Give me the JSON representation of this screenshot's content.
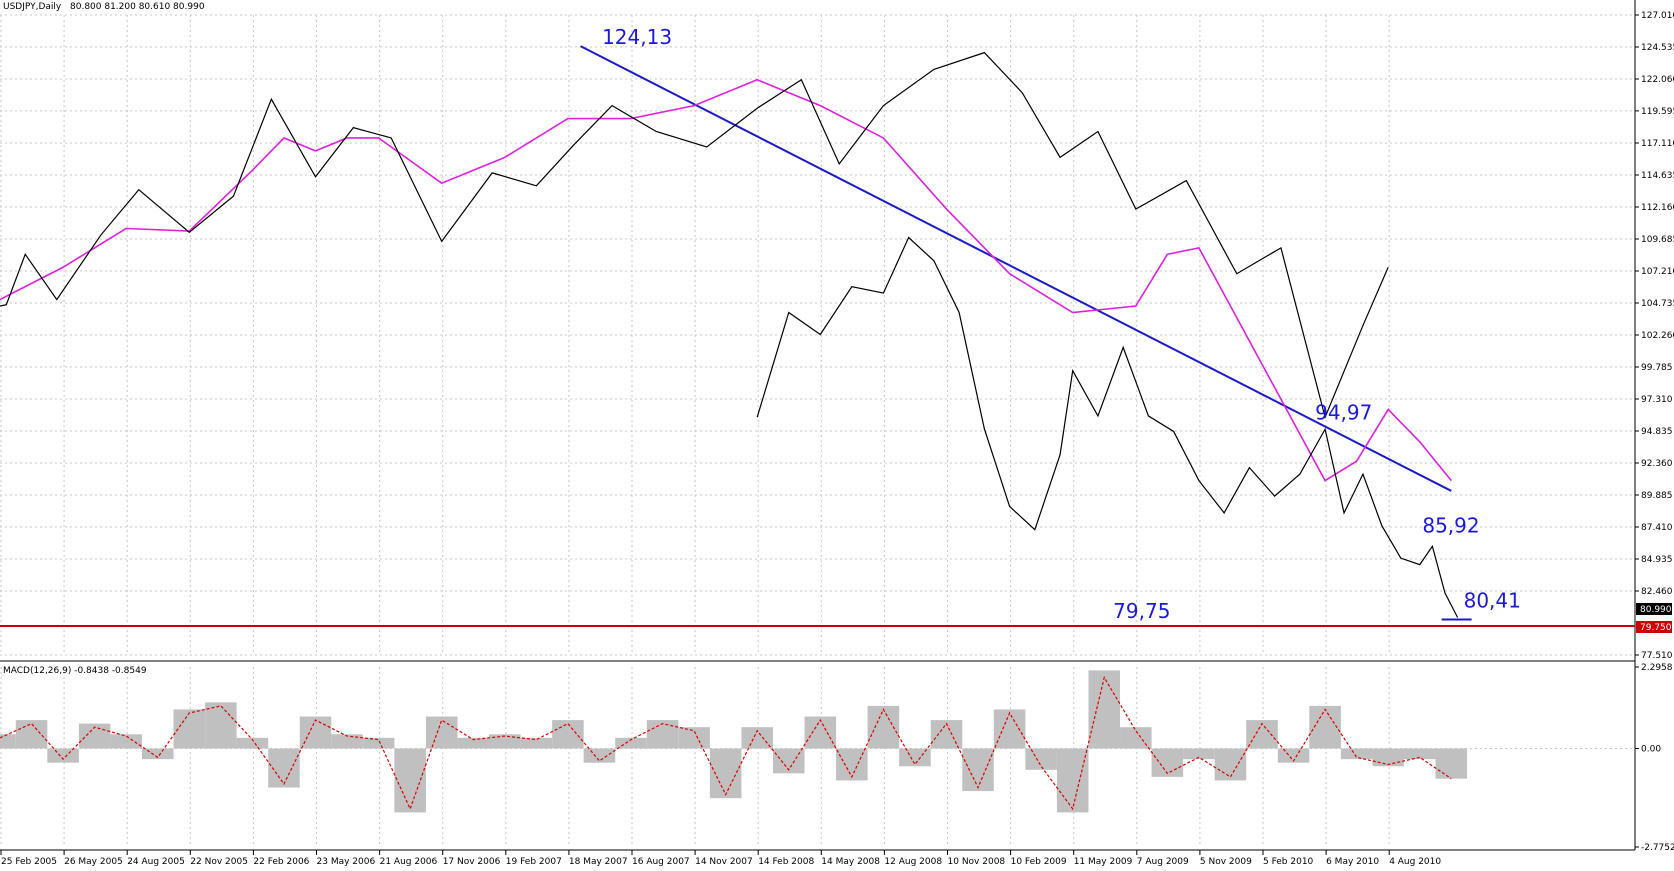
{
  "header": {
    "symbol_label": "USDJPY,Daily",
    "ohlc_label": "80.800 81.200 80.610 80.990"
  },
  "colors": {
    "price": "#000000",
    "ma": "#e020e0",
    "trendline": "#1a1acc",
    "support": "#cc0000",
    "macd_hist": "#c0c0c0",
    "macd_signal": "#dd0000",
    "grid": "#c8c8c8",
    "annotation": "#1a1adc"
  },
  "chart_data": [
    {
      "type": "line",
      "name": "price-panel",
      "x_ticks": [
        "25 Feb 2005",
        "26 May 2005",
        "24 Aug 2005",
        "22 Nov 2005",
        "22 Feb 2006",
        "23 May 2006",
        "21 Aug 2006",
        "17 Nov 2006",
        "19 Feb 2007",
        "18 May 2007",
        "16 Aug 2007",
        "14 Nov 2007",
        "14 Feb 2008",
        "14 May 2008",
        "12 Aug 2008",
        "10 Nov 2008",
        "10 Feb 2009",
        "11 May 2009",
        "7 Aug 2009",
        "5 Nov 2009",
        "5 Feb 2010",
        "6 May 2010",
        "4 Aug 2010"
      ],
      "y_ticks": [
        "127.010",
        "124.535",
        "122.060",
        "119.595",
        "117.110",
        "114.635",
        "112.160",
        "109.685",
        "107.210",
        "104.735",
        "102.260",
        "99.785",
        "97.310",
        "94.835",
        "92.360",
        "89.885",
        "87.410",
        "84.935",
        "82.460",
        "77.510"
      ],
      "ylim": [
        77.51,
        127.01
      ],
      "current_price_label": "80.990",
      "support_label": "79.750",
      "support_level": 79.75,
      "series": [
        {
          "kind": "close",
          "x": [
            0,
            0.1,
            0.4,
            0.9,
            1.6,
            2.2,
            3.0,
            3.7,
            4.3,
            5.0,
            5.6,
            6.2,
            7.0,
            7.8,
            8.5,
            9.1,
            9.7,
            10.4,
            11.2,
            12.0,
            12.7,
            13.3,
            14.0,
            14.8,
            15.6,
            16.2,
            16.8,
            17.4,
            18.0,
            18.8,
            19.6,
            20.3,
            21.0,
            21.6,
            22.0
          ],
          "y": [
            104.5,
            104.6,
            108.5,
            105.0,
            110.0,
            113.5,
            110.2,
            113.0,
            120.5,
            114.5,
            118.3,
            117.5,
            109.5,
            114.8,
            113.8,
            117.0,
            120.0,
            118.0,
            116.8,
            119.8,
            122.0,
            115.5,
            120.0,
            122.8,
            124.1,
            121.0,
            116.0,
            118.0,
            112.0,
            114.2,
            107.0,
            109.0,
            95.9,
            103.0,
            107.5
          ]
        },
        {
          "kind": "close-2008-2010",
          "x": [
            12.0,
            12.5,
            13.0,
            13.5,
            14.0,
            14.4,
            14.8,
            15.2,
            15.6,
            16.0,
            16.4,
            16.8,
            17.0,
            17.4,
            17.8,
            18.2,
            18.6,
            19.0,
            19.4,
            19.8,
            20.2,
            20.6,
            21.0,
            21.3,
            21.6,
            21.9,
            22.2,
            22.5,
            22.7,
            22.9,
            23.1
          ],
          "y": [
            95.9,
            104.0,
            102.3,
            106.0,
            105.5,
            109.8,
            108.0,
            104.0,
            95.0,
            89.0,
            87.2,
            93.0,
            99.5,
            96.0,
            101.3,
            96.0,
            94.8,
            91.0,
            88.5,
            92.0,
            89.8,
            91.5,
            94.97,
            88.5,
            91.5,
            87.5,
            85.0,
            84.5,
            85.92,
            82.3,
            80.41
          ]
        },
        {
          "kind": "moving-average",
          "x": [
            0,
            1.0,
            2.0,
            3.0,
            4.0,
            4.5,
            5.0,
            5.5,
            6.0,
            7.0,
            8.0,
            9.0,
            10.0,
            11.0,
            12.0,
            13.0,
            14.0,
            15.0,
            16.0,
            17.0,
            18.0,
            18.5,
            19.0,
            20.0,
            21.0,
            21.5,
            22.0,
            22.5,
            23.0
          ],
          "y": [
            105.0,
            107.5,
            110.5,
            110.3,
            115.0,
            117.5,
            116.5,
            117.5,
            117.5,
            114.0,
            116.0,
            119.0,
            119.0,
            120.0,
            122.0,
            120.0,
            117.5,
            112.0,
            107.0,
            104.0,
            104.5,
            108.5,
            109.0,
            100.0,
            91.0,
            92.5,
            96.5,
            94.0,
            91.0
          ]
        }
      ],
      "annotations": [
        {
          "text": "124,13",
          "x": 9.7,
          "y": 124.13
        },
        {
          "text": "94,97",
          "x": 21.0,
          "y": 94.97
        },
        {
          "text": "85,92",
          "x": 22.7,
          "y": 85.92
        },
        {
          "text": "80,41",
          "x": 23.1,
          "y": 80.41
        },
        {
          "text": "79,75",
          "x": 17.8,
          "y": 79.75
        }
      ],
      "trendline": {
        "x1": 9.2,
        "y1": 124.6,
        "x2": 23.0,
        "y2": 90.2
      }
    },
    {
      "type": "bar",
      "name": "macd-panel",
      "label": "MACD(12,26,9) -0.8438 -0.8549",
      "y_ticks": [
        "2.2958",
        "0.00",
        "-2.7752"
      ],
      "ylim": [
        -2.7752,
        2.2958
      ],
      "x": [
        0,
        0.5,
        1.0,
        1.5,
        2.0,
        2.5,
        3.0,
        3.5,
        4.0,
        4.5,
        5.0,
        5.5,
        6.0,
        6.5,
        7.0,
        7.5,
        8.0,
        8.5,
        9.0,
        9.5,
        10.0,
        10.5,
        11.0,
        11.5,
        12.0,
        12.5,
        13.0,
        13.5,
        14.0,
        14.5,
        15.0,
        15.5,
        16.0,
        16.5,
        17.0,
        17.5,
        18.0,
        18.5,
        19.0,
        19.5,
        20.0,
        20.5,
        21.0,
        21.5,
        22.0,
        22.5,
        23.0
      ],
      "hist": [
        0.4,
        0.8,
        -0.4,
        0.7,
        0.4,
        -0.3,
        1.1,
        1.3,
        0.3,
        -1.1,
        0.9,
        0.4,
        0.3,
        -1.8,
        0.9,
        0.3,
        0.4,
        0.3,
        0.8,
        -0.4,
        0.3,
        0.8,
        0.6,
        -1.4,
        0.6,
        -0.7,
        0.9,
        -0.9,
        1.2,
        -0.5,
        0.8,
        -1.2,
        1.1,
        -0.6,
        -1.8,
        2.2,
        0.6,
        -0.8,
        -0.3,
        -0.9,
        0.8,
        -0.4,
        1.2,
        -0.3,
        -0.5,
        -0.3,
        -0.85
      ],
      "signal": [
        0.3,
        0.7,
        -0.3,
        0.6,
        0.35,
        -0.25,
        1.0,
        1.2,
        0.25,
        -1.0,
        0.8,
        0.35,
        0.25,
        -1.7,
        0.8,
        0.25,
        0.35,
        0.25,
        0.7,
        -0.35,
        0.25,
        0.7,
        0.5,
        -1.3,
        0.5,
        -0.6,
        0.8,
        -0.8,
        1.1,
        -0.45,
        0.7,
        -1.1,
        1.0,
        -0.5,
        -1.7,
        2.0,
        0.5,
        -0.7,
        -0.25,
        -0.8,
        0.7,
        -0.35,
        1.1,
        -0.25,
        -0.45,
        -0.25,
        -0.85
      ]
    }
  ]
}
